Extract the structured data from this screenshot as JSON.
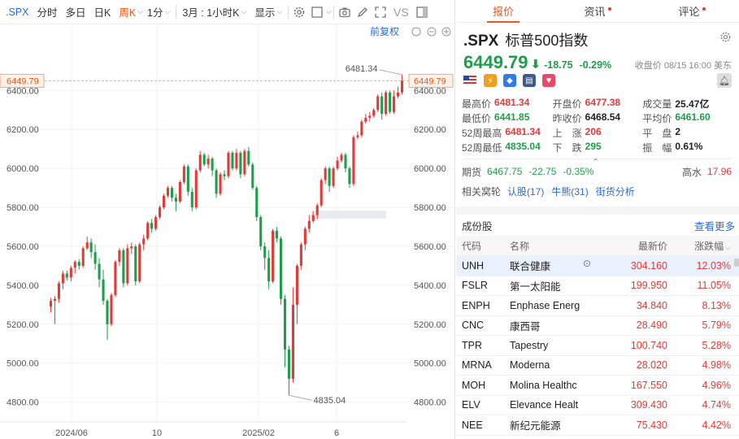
{
  "toolbar": {
    "symbol": ".SPX",
    "intraday": "分时",
    "multiday": "多日",
    "daily": "日K",
    "weekly": "周K",
    "minute": "1分",
    "range": "3月 : 1小时K",
    "display": "显示",
    "vs": "VS"
  },
  "chart_header": {
    "restore_label": "前复权"
  },
  "price_line": {
    "label": "6449.79",
    "color": "#f5a37a"
  },
  "annotations": {
    "high": "6481.34",
    "low": "4835.04"
  },
  "colors": {
    "up": "#e53935",
    "down": "#1e9e4a",
    "accent": "#e8581c"
  },
  "chart_data": {
    "type": "candlestick",
    "x_ticks": [
      "2024/06",
      "10",
      "2025/02",
      "6"
    ],
    "y_ticks": [
      "6400.00",
      "6200.00",
      "6000.00",
      "5800.00",
      "5600.00",
      "5400.00",
      "5200.00",
      "5000.00",
      "4800.00"
    ],
    "ylim": [
      4740,
      6560
    ],
    "highest": 6481.34,
    "lowest": 4835.04,
    "last": 6449.79,
    "candles": [
      [
        5290,
        5320,
        5260,
        5335
      ],
      [
        5320,
        5330,
        5200,
        5345
      ],
      [
        5330,
        5410,
        5310,
        5420
      ],
      [
        5410,
        5460,
        5380,
        5475
      ],
      [
        5460,
        5440,
        5425,
        5475
      ],
      [
        5440,
        5490,
        5420,
        5500
      ],
      [
        5490,
        5520,
        5460,
        5530
      ],
      [
        5520,
        5500,
        5480,
        5535
      ],
      [
        5500,
        5590,
        5490,
        5600
      ],
      [
        5590,
        5620,
        5580,
        5650
      ],
      [
        5620,
        5570,
        5540,
        5640
      ],
      [
        5570,
        5510,
        5480,
        5610
      ],
      [
        5510,
        5430,
        5390,
        5540
      ],
      [
        5430,
        5320,
        5300,
        5480
      ],
      [
        5320,
        5200,
        5120,
        5330
      ],
      [
        5200,
        5350,
        5190,
        5360
      ],
      [
        5350,
        5520,
        5340,
        5530
      ],
      [
        5520,
        5580,
        5500,
        5590
      ],
      [
        5580,
        5410,
        5390,
        5590
      ],
      [
        5410,
        5590,
        5400,
        5610
      ],
      [
        5590,
        5600,
        5560,
        5620
      ],
      [
        5600,
        5420,
        5400,
        5610
      ],
      [
        5420,
        5610,
        5410,
        5620
      ],
      [
        5610,
        5640,
        5580,
        5660
      ],
      [
        5640,
        5720,
        5630,
        5730
      ],
      [
        5720,
        5690,
        5670,
        5740
      ],
      [
        5690,
        5750,
        5680,
        5760
      ],
      [
        5750,
        5800,
        5740,
        5810
      ],
      [
        5800,
        5860,
        5790,
        5870
      ],
      [
        5860,
        5900,
        5850,
        5910
      ],
      [
        5900,
        5850,
        5830,
        5910
      ],
      [
        5850,
        5830,
        5780,
        5870
      ],
      [
        5830,
        5930,
        5820,
        5940
      ],
      [
        5930,
        6010,
        5920,
        6020
      ],
      [
        6010,
        5880,
        5860,
        6020
      ],
      [
        5880,
        5800,
        5780,
        5900
      ],
      [
        5800,
        5990,
        5790,
        6000
      ],
      [
        5990,
        6070,
        5980,
        6090
      ],
      [
        6070,
        6020,
        6010,
        6080
      ],
      [
        6020,
        6050,
        6000,
        6070
      ],
      [
        6050,
        5990,
        5960,
        6060
      ],
      [
        5990,
        5870,
        5850,
        6000
      ],
      [
        5870,
        5970,
        5860,
        5980
      ],
      [
        5970,
        5960,
        5940,
        5990
      ],
      [
        5960,
        6080,
        5950,
        6090
      ],
      [
        6080,
        6000,
        5990,
        6090
      ],
      [
        6000,
        6080,
        5990,
        6100
      ],
      [
        6080,
        5970,
        5950,
        6090
      ],
      [
        5970,
        6090,
        5960,
        6100
      ],
      [
        6090,
        6020,
        6010,
        6110
      ],
      [
        6020,
        5900,
        5890,
        6030
      ],
      [
        5900,
        5750,
        5730,
        5910
      ],
      [
        5750,
        5600,
        5580,
        5760
      ],
      [
        5600,
        5540,
        5480,
        5620
      ],
      [
        5540,
        5420,
        5380,
        5580
      ],
      [
        5420,
        5680,
        5410,
        5690
      ],
      [
        5680,
        5640,
        5620,
        5700
      ],
      [
        5640,
        5330,
        5300,
        5650
      ],
      [
        5330,
        5070,
        4980,
        5350
      ],
      [
        5070,
        4920,
        4835,
        5090
      ],
      [
        4920,
        5300,
        4900,
        5390
      ],
      [
        5300,
        5500,
        5200,
        5510
      ],
      [
        5500,
        5610,
        5480,
        5620
      ],
      [
        5610,
        5690,
        5580,
        5700
      ],
      [
        5690,
        5730,
        5670,
        5760
      ],
      [
        5730,
        5760,
        5720,
        5780
      ],
      [
        5760,
        5810,
        5740,
        5820
      ],
      [
        5810,
        5940,
        5800,
        5950
      ],
      [
        5940,
        6000,
        5920,
        6010
      ],
      [
        6000,
        5910,
        5880,
        6010
      ],
      [
        5910,
        6000,
        5900,
        6010
      ],
      [
        6000,
        6040,
        5990,
        6060
      ],
      [
        6040,
        6070,
        6030,
        6080
      ],
      [
        6070,
        6000,
        5980,
        6080
      ],
      [
        6000,
        5920,
        5900,
        6010
      ],
      [
        5920,
        6160,
        5910,
        6170
      ],
      [
        6160,
        6170,
        6150,
        6190
      ],
      [
        6170,
        6240,
        6160,
        6250
      ],
      [
        6240,
        6260,
        6230,
        6280
      ],
      [
        6260,
        6270,
        6240,
        6290
      ],
      [
        6270,
        6300,
        6260,
        6310
      ],
      [
        6300,
        6370,
        6290,
        6380
      ],
      [
        6370,
        6280,
        6250,
        6390
      ],
      [
        6280,
        6390,
        6270,
        6400
      ],
      [
        6390,
        6290,
        6280,
        6400
      ],
      [
        6290,
        6370,
        6280,
        6400
      ],
      [
        6370,
        6390,
        6360,
        6420
      ],
      [
        6390,
        6450,
        6380,
        6481.34
      ]
    ]
  },
  "quote": {
    "symbol": ".SPX",
    "name": "标普500指数",
    "price": "6449.79",
    "arrow": "⬇",
    "change": "-18.75",
    "change_pct": "-0.29%",
    "close_info": "收盘价 08/15 16:00 美东"
  },
  "stats": [
    [
      {
        "label": "最高价",
        "value": "6481.34",
        "color": "red"
      },
      {
        "label": "开盘价",
        "value": "6477.38",
        "color": "red"
      },
      {
        "label": "成交量",
        "value": "25.47亿",
        "color": "black"
      }
    ],
    [
      {
        "label": "最低价",
        "value": "6441.85",
        "color": "green"
      },
      {
        "label": "昨收价",
        "value": "6468.54",
        "color": "black"
      },
      {
        "label": "平均价",
        "value": "6461.60",
        "color": "green"
      }
    ],
    [
      {
        "label": "52周最高",
        "value": "6481.34",
        "color": "red"
      },
      {
        "label": "上　涨",
        "value": "206",
        "color": "red"
      },
      {
        "label": "平　盘",
        "value": "2",
        "color": "black"
      }
    ],
    [
      {
        "label": "52周最低",
        "value": "4835.04",
        "color": "green"
      },
      {
        "label": "下　跌",
        "value": "295",
        "color": "green"
      },
      {
        "label": "振　幅",
        "value": "0.61%",
        "color": "black"
      }
    ]
  ],
  "futures": {
    "label": "期货",
    "price": "6467.75",
    "change": "-22.75",
    "pct": "-0.35%",
    "premium_label": "高水",
    "premium": "17.96"
  },
  "related": {
    "label": "相关窝轮",
    "links": [
      "认股(17)",
      "牛熊(31)",
      "街货分析"
    ]
  },
  "constituents": {
    "title": "成份股",
    "more": "查看更多",
    "headers": {
      "code": "代码",
      "name": "名称",
      "price": "最新价",
      "change": "涨跌幅"
    },
    "rows": [
      {
        "code": "UNH",
        "name": "联合健康",
        "price": "304.160",
        "change": "12.03%"
      },
      {
        "code": "FSLR",
        "name": "第一太阳能",
        "price": "199.950",
        "change": "11.05%"
      },
      {
        "code": "ENPH",
        "name": "Enphase Energ",
        "price": "34.840",
        "change": "8.13%"
      },
      {
        "code": "CNC",
        "name": "康西哥",
        "price": "28.490",
        "change": "5.79%"
      },
      {
        "code": "TPR",
        "name": "Tapestry",
        "price": "100.740",
        "change": "5.28%"
      },
      {
        "code": "MRNA",
        "name": "Moderna",
        "price": "28.020",
        "change": "4.98%"
      },
      {
        "code": "MOH",
        "name": "Molina Healthc",
        "price": "167.550",
        "change": "4.96%"
      },
      {
        "code": "ELV",
        "name": "Elevance Healt",
        "price": "309.430",
        "change": "4.74%"
      },
      {
        "code": "NEE",
        "name": "新纪元能源",
        "price": "75.430",
        "change": "4.42%"
      }
    ]
  },
  "tabs": {
    "quote": "报价",
    "news": "资讯",
    "comments": "评论"
  }
}
